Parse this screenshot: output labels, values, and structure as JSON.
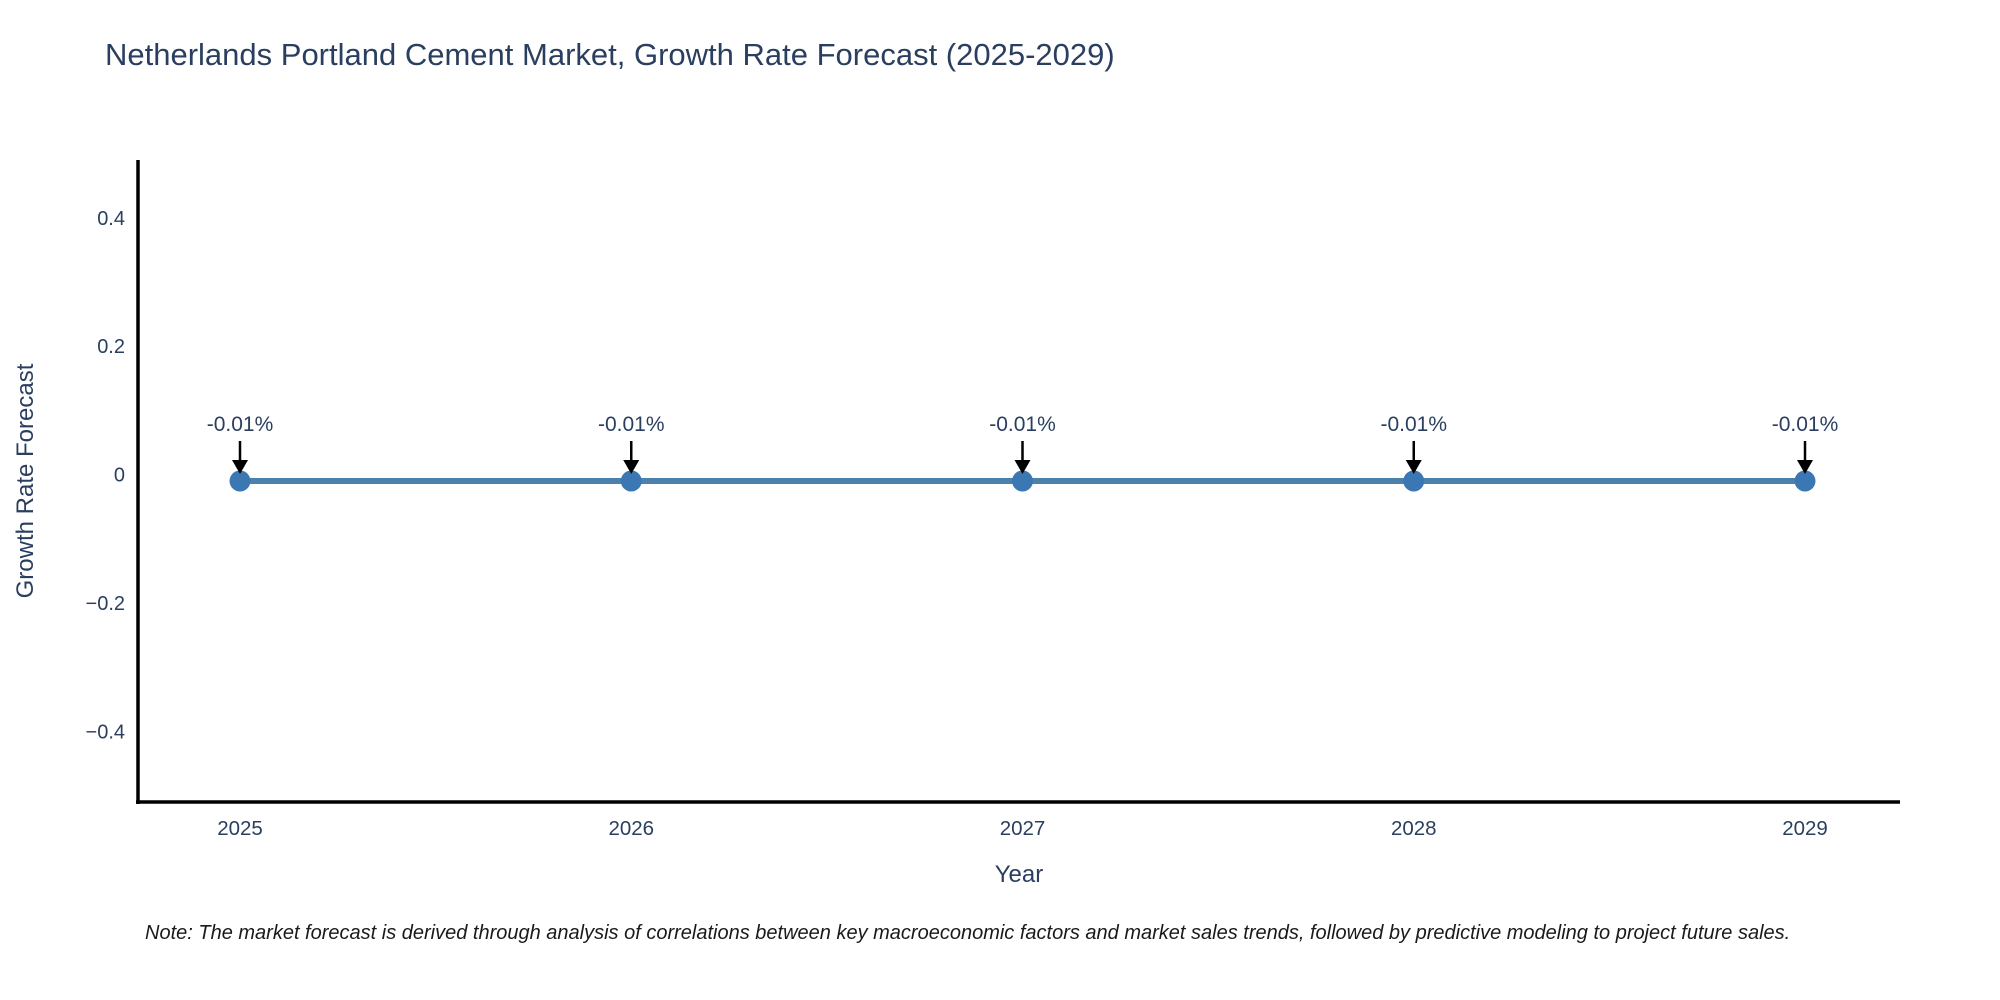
{
  "title": "Netherlands Portland Cement Market, Growth Rate Forecast (2025-2029)",
  "note": "Note: The market forecast is derived through analysis of correlations between key macroeconomic factors and market sales trends, followed by predictive modeling to project future sales.",
  "colors": {
    "text": "#2a3f5f",
    "axis": "#000000",
    "line": "#4c81ab",
    "marker": "#3b77b3",
    "arrow": "#000000",
    "background": "#ffffff"
  },
  "chart_data": {
    "type": "line",
    "title": "Netherlands Portland Cement Market, Growth Rate Forecast (2025-2029)",
    "xlabel": "Year",
    "ylabel": "Growth Rate Forecast",
    "categories": [
      "2025",
      "2026",
      "2027",
      "2028",
      "2029"
    ],
    "series": [
      {
        "name": "Growth Rate Forecast",
        "values": [
          -0.01,
          -0.01,
          -0.01,
          -0.01,
          -0.01
        ]
      }
    ],
    "annotations": [
      "-0.01%",
      "-0.01%",
      "-0.01%",
      "-0.01%",
      "-0.01%"
    ],
    "yticks": [
      0.4,
      0.2,
      0,
      -0.2,
      -0.4
    ],
    "ylim": [
      -0.51,
      0.49
    ],
    "grid": false,
    "legend": "none",
    "marker": "circle"
  }
}
